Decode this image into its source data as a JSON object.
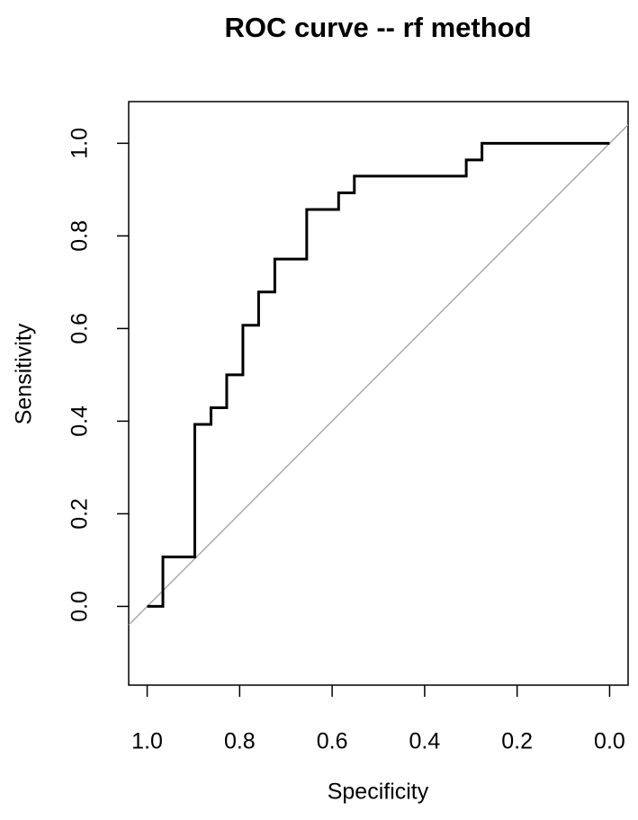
{
  "chart_data": {
    "type": "line",
    "title": "ROC curve -- rf method",
    "x_label": "Specificity",
    "y_label": "Sensitivity",
    "x": [
      1,
      0.966,
      0.966,
      0.897,
      0.897,
      0.862,
      0.862,
      0.828,
      0.828,
      0.793,
      0.793,
      0.759,
      0.759,
      0.724,
      0.724,
      0.655,
      0.655,
      0.586,
      0.586,
      0.552,
      0.552,
      0.31,
      0.31,
      0.276,
      0.276,
      0
    ],
    "series": [
      {
        "color": "#000000",
        "values": [
          0,
          0,
          0.107,
          0.107,
          0.393,
          0.393,
          0.429,
          0.429,
          0.5,
          0.5,
          0.607,
          0.607,
          0.679,
          0.679,
          0.75,
          0.75,
          0.857,
          0.857,
          0.893,
          0.893,
          0.929,
          0.929,
          0.964,
          0.964,
          1,
          1
        ]
      }
    ],
    "reference_line": {
      "intercept": 1,
      "slope": -1,
      "color": "#aaaaaa"
    },
    "xlim": [
      1.04,
      -0.04
    ],
    "ylim": [
      -0.17,
      1.09
    ],
    "xticks": [
      {
        "value": 1,
        "label": "1.0"
      },
      {
        "value": 0.8,
        "label": "0.8"
      },
      {
        "value": 0.6,
        "label": "0.6"
      },
      {
        "value": 0.4,
        "label": "0.4"
      },
      {
        "value": 0.2,
        "label": "0.2"
      },
      {
        "value": 0,
        "label": "0.0"
      }
    ],
    "yticks": [
      {
        "value": 0,
        "label": "0.0"
      },
      {
        "value": 0.2,
        "label": "0.2"
      },
      {
        "value": 0.4,
        "label": "0.4"
      },
      {
        "value": 0.6,
        "label": "0.6"
      },
      {
        "value": 0.8,
        "label": "0.8"
      },
      {
        "value": 1,
        "label": "1.0"
      }
    ],
    "grid": false
  }
}
